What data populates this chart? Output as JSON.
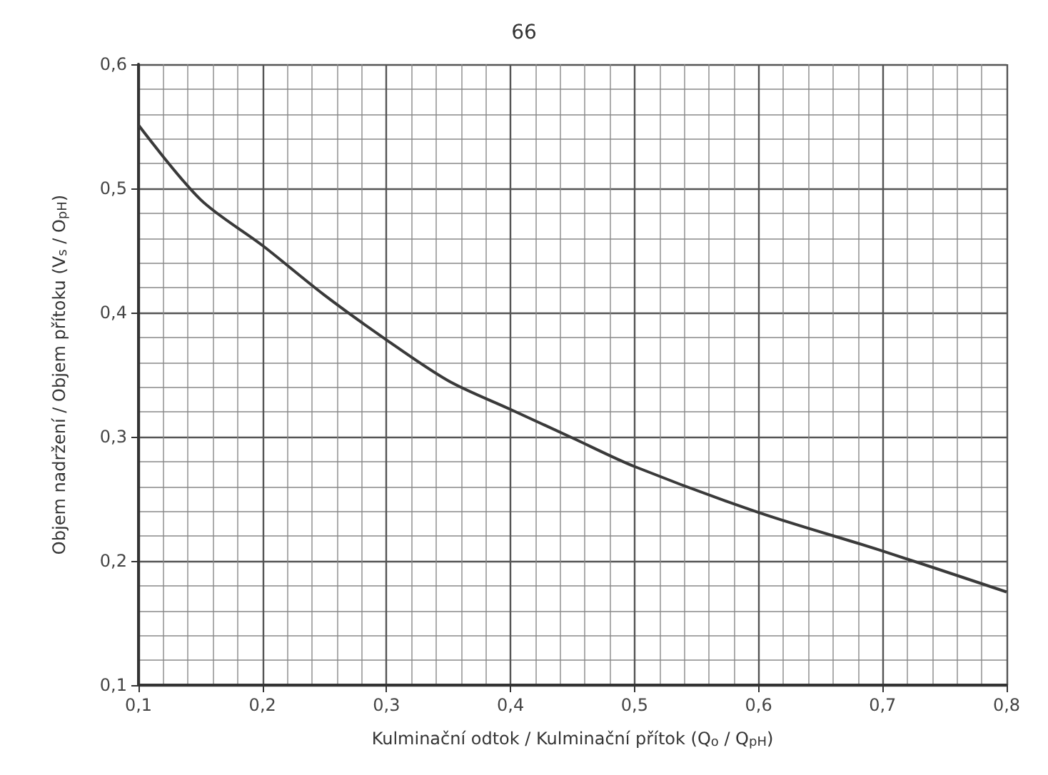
{
  "chart_data": {
    "type": "line",
    "xlabel": "Kulminační odtok / Kulminační přítok (Q$_{o}$ / Q$_{pH}$)",
    "ylabel": "Objem nadržení / Objem přítoku (V$_{s}$ / O$_{pH}$)",
    "annotations": [
      "66"
    ],
    "x": [
      0.1,
      0.15,
      0.2,
      0.25,
      0.3,
      0.35,
      0.4,
      0.45,
      0.5,
      0.6,
      0.7,
      0.8
    ],
    "series": [
      {
        "color": "#3a3a3a",
        "values": [
          0.551,
          0.491,
          0.454,
          0.414,
          0.378,
          0.345,
          0.322,
          0.299,
          0.276,
          0.239,
          0.208,
          0.175
        ]
      }
    ],
    "xlim": [
      0.1,
      0.8
    ],
    "xticks": [
      {
        "value": 0.1,
        "label": "0,1"
      },
      {
        "value": 0.2,
        "label": "0,2"
      },
      {
        "value": 0.3,
        "label": "0,3"
      },
      {
        "value": 0.4,
        "label": "0,4"
      },
      {
        "value": 0.5,
        "label": "0,5"
      },
      {
        "value": 0.6,
        "label": "0,6"
      },
      {
        "value": 0.7,
        "label": "0,7"
      },
      {
        "value": 0.8,
        "label": "0,8"
      }
    ],
    "ylim": [
      0.1,
      0.6
    ],
    "yticks": [
      {
        "value": 0.1,
        "label": "0,1"
      },
      {
        "value": 0.2,
        "label": "0,2"
      },
      {
        "value": 0.3,
        "label": "0,3"
      },
      {
        "value": 0.4,
        "label": "0,4"
      },
      {
        "value": 0.5,
        "label": "0,5"
      },
      {
        "value": 0.6,
        "label": "0,6"
      }
    ],
    "grid": true,
    "marker": "none",
    "line_style": "solid"
  }
}
